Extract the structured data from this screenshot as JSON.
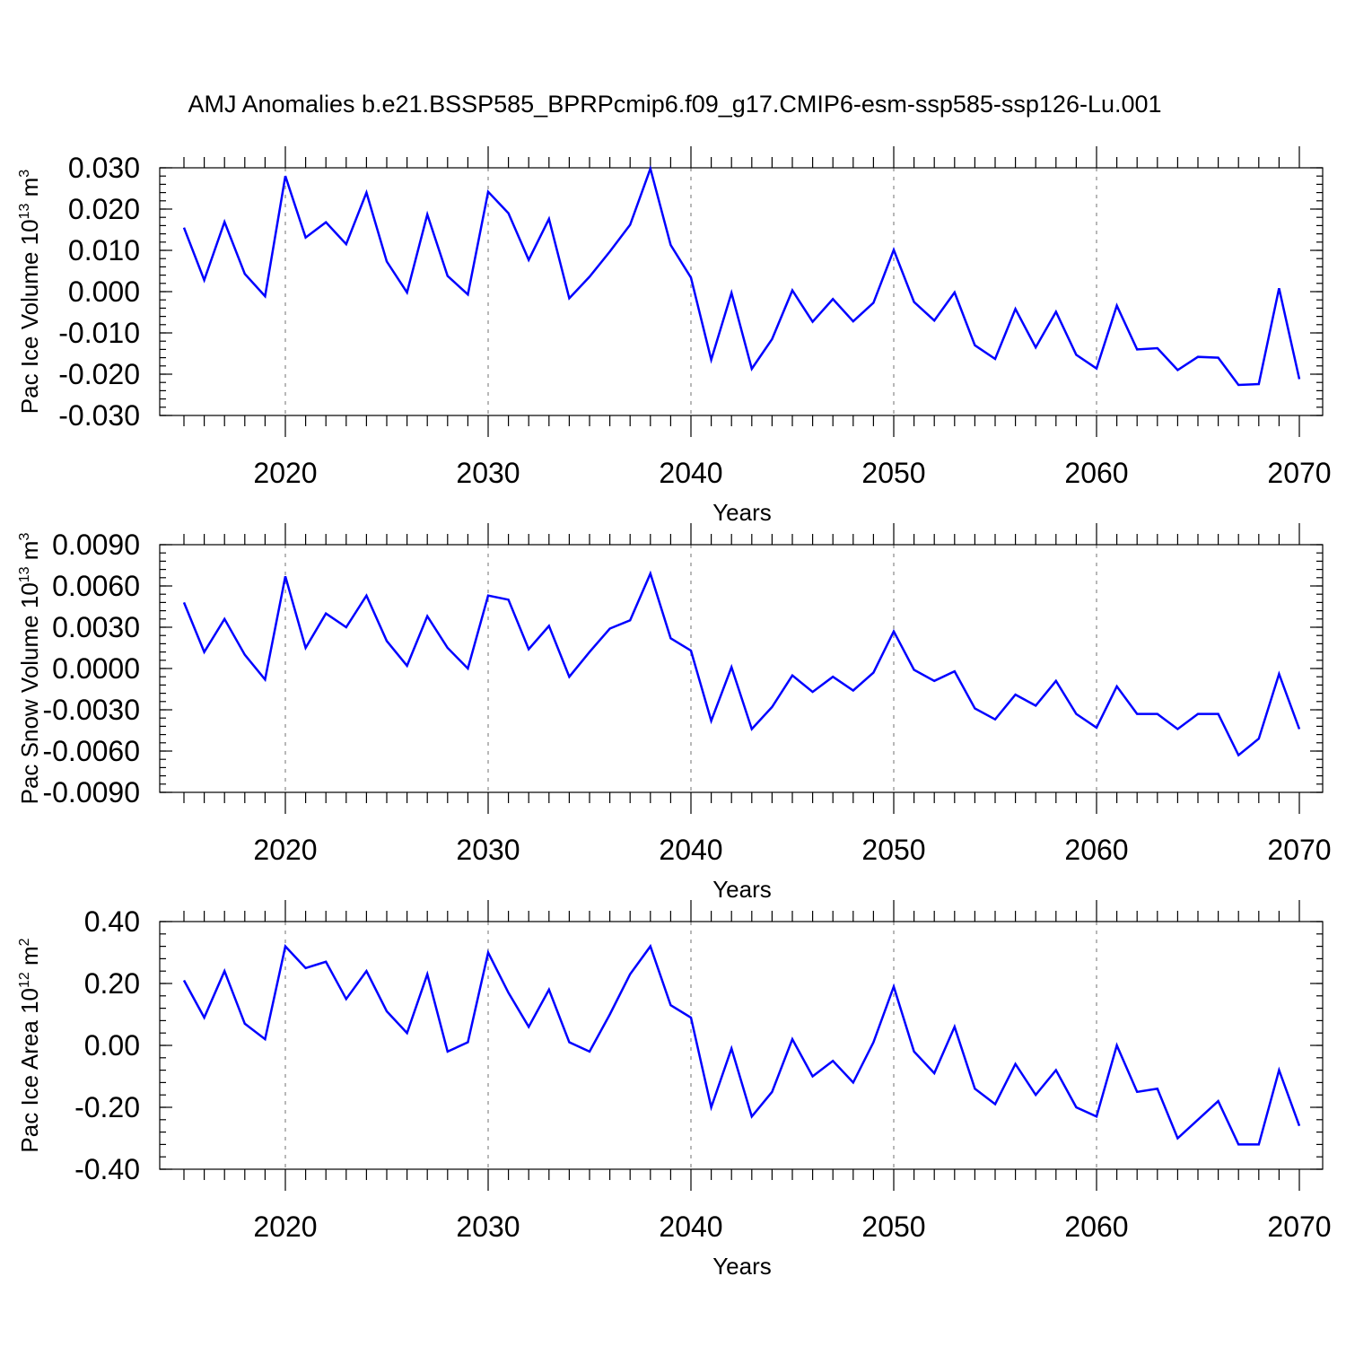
{
  "figure_title": "AMJ Anomalies b.e21.BSSP585_BPRPcmip6.f09_g17.CMIP6-esm-ssp585-ssp126-Lu.001",
  "colors": {
    "line": "#0000ff",
    "grid": "#888888",
    "axes": "#000000"
  },
  "chart_data": [
    {
      "type": "line",
      "ylabel": "Pac Ice Volume 10",
      "ylabel_exp": "13",
      "ylabel_unit": " m",
      "ylabel_unit_exp": "3",
      "xlabel": "Years",
      "xlim": [
        2015,
        2070
      ],
      "ylim": [
        -0.03,
        0.03
      ],
      "xticks": [
        2020,
        2030,
        2040,
        2050,
        2060,
        2070
      ],
      "xtick_labels": [
        "2020",
        "2030",
        "2040",
        "2050",
        "2060",
        "2070"
      ],
      "yticks": [
        0.03,
        0.02,
        0.01,
        0.0,
        -0.01,
        -0.02,
        -0.03
      ],
      "ytick_labels": [
        "0.030",
        "0.020",
        "0.010",
        "0.000",
        "-0.010",
        "-0.020",
        "-0.030"
      ],
      "yminor_step": 0.002,
      "xminor_step": 1,
      "vgrid": [
        2020,
        2030,
        2040,
        2050,
        2060
      ],
      "x": [
        2015,
        2016,
        2017,
        2018,
        2019,
        2020,
        2021,
        2022,
        2023,
        2024,
        2025,
        2026,
        2027,
        2028,
        2029,
        2030,
        2031,
        2032,
        2033,
        2034,
        2035,
        2036,
        2037,
        2038,
        2039,
        2040,
        2041,
        2042,
        2043,
        2044,
        2045,
        2046,
        2047,
        2048,
        2049,
        2050,
        2051,
        2052,
        2053,
        2054,
        2055,
        2056,
        2057,
        2058,
        2059,
        2060,
        2061,
        2062,
        2063,
        2064,
        2065,
        2066,
        2067,
        2068,
        2069,
        2070
      ],
      "values": [
        0.0155,
        0.0028,
        0.0169,
        0.0043,
        -0.0011,
        0.028,
        0.0131,
        0.0168,
        0.0115,
        0.024,
        0.0073,
        -0.0002,
        0.0187,
        0.0038,
        -0.0007,
        0.0242,
        0.019,
        0.0077,
        0.0176,
        -0.0016,
        0.0036,
        0.0097,
        0.0162,
        0.0298,
        0.0113,
        0.0034,
        -0.0165,
        -0.0003,
        -0.0187,
        -0.0115,
        0.0003,
        -0.0073,
        -0.0018,
        -0.0072,
        -0.0027,
        0.0101,
        -0.0025,
        -0.007,
        -0.0002,
        -0.013,
        -0.0163,
        -0.0042,
        -0.0135,
        -0.0049,
        -0.0153,
        -0.0186,
        -0.0034,
        -0.014,
        -0.0137,
        -0.019,
        -0.0158,
        -0.016,
        -0.0226,
        -0.0224,
        0.0008,
        -0.0212
      ]
    },
    {
      "type": "line",
      "ylabel": "Pac Snow Volume 10",
      "ylabel_exp": "13",
      "ylabel_unit": " m",
      "ylabel_unit_exp": "3",
      "xlabel": "Years",
      "xlim": [
        2015,
        2070
      ],
      "ylim": [
        -0.009,
        0.009
      ],
      "xticks": [
        2020,
        2030,
        2040,
        2050,
        2060,
        2070
      ],
      "xtick_labels": [
        "2020",
        "2030",
        "2040",
        "2050",
        "2060",
        "2070"
      ],
      "yticks": [
        0.009,
        0.006,
        0.003,
        0.0,
        -0.003,
        -0.006,
        -0.009
      ],
      "ytick_labels": [
        "0.0090",
        "0.0060",
        "0.0030",
        "0.0000",
        "-0.0030",
        "-0.0060",
        "-0.0090"
      ],
      "yminor_step": 0.0006,
      "xminor_step": 1,
      "vgrid": [
        2020,
        2030,
        2040,
        2050,
        2060
      ],
      "x": [
        2015,
        2016,
        2017,
        2018,
        2019,
        2020,
        2021,
        2022,
        2023,
        2024,
        2025,
        2026,
        2027,
        2028,
        2029,
        2030,
        2031,
        2032,
        2033,
        2034,
        2035,
        2036,
        2037,
        2038,
        2039,
        2040,
        2041,
        2042,
        2043,
        2044,
        2045,
        2046,
        2047,
        2048,
        2049,
        2050,
        2051,
        2052,
        2053,
        2054,
        2055,
        2056,
        2057,
        2058,
        2059,
        2060,
        2061,
        2062,
        2063,
        2064,
        2065,
        2066,
        2067,
        2068,
        2069,
        2070
      ],
      "values": [
        0.0048,
        0.0012,
        0.0036,
        0.001,
        -0.0008,
        0.0067,
        0.0015,
        0.004,
        0.003,
        0.0053,
        0.002,
        0.0002,
        0.0038,
        0.0015,
        0.0,
        0.0053,
        0.005,
        0.0014,
        0.0031,
        -0.0006,
        0.0012,
        0.0029,
        0.0035,
        0.0069,
        0.0022,
        0.0013,
        -0.0038,
        0.0001,
        -0.0044,
        -0.0028,
        -0.0005,
        -0.0017,
        -0.0006,
        -0.0016,
        -0.0003,
        0.0027,
        -0.0001,
        -0.0009,
        -0.0002,
        -0.0029,
        -0.0037,
        -0.0019,
        -0.0027,
        -0.0009,
        -0.0033,
        -0.0043,
        -0.0013,
        -0.0033,
        -0.0033,
        -0.0044,
        -0.0033,
        -0.0033,
        -0.0063,
        -0.0051,
        -0.0004,
        -0.0044
      ]
    },
    {
      "type": "line",
      "ylabel": "Pac Ice Area 10",
      "ylabel_exp": "12",
      "ylabel_unit": " m",
      "ylabel_unit_exp": "2",
      "xlabel": "Years",
      "xlim": [
        2015,
        2070
      ],
      "ylim": [
        -0.4,
        0.4
      ],
      "xticks": [
        2020,
        2030,
        2040,
        2050,
        2060,
        2070
      ],
      "xtick_labels": [
        "2020",
        "2030",
        "2040",
        "2050",
        "2060",
        "2070"
      ],
      "yticks": [
        0.4,
        0.2,
        0.0,
        -0.2,
        -0.4
      ],
      "ytick_labels": [
        "0.40",
        "0.20",
        "0.00",
        "-0.20",
        "-0.40"
      ],
      "yminor_step": 0.04,
      "xminor_step": 1,
      "vgrid": [
        2020,
        2030,
        2040,
        2050,
        2060
      ],
      "x": [
        2015,
        2016,
        2017,
        2018,
        2019,
        2020,
        2021,
        2022,
        2023,
        2024,
        2025,
        2026,
        2027,
        2028,
        2029,
        2030,
        2031,
        2032,
        2033,
        2034,
        2035,
        2036,
        2037,
        2038,
        2039,
        2040,
        2041,
        2042,
        2043,
        2044,
        2045,
        2046,
        2047,
        2048,
        2049,
        2050,
        2051,
        2052,
        2053,
        2054,
        2055,
        2056,
        2057,
        2058,
        2059,
        2060,
        2061,
        2062,
        2063,
        2064,
        2065,
        2066,
        2067,
        2068,
        2069,
        2070
      ],
      "values": [
        0.21,
        0.09,
        0.24,
        0.07,
        0.02,
        0.32,
        0.25,
        0.27,
        0.15,
        0.24,
        0.11,
        0.04,
        0.23,
        -0.02,
        0.01,
        0.3,
        0.17,
        0.06,
        0.18,
        0.01,
        -0.02,
        0.1,
        0.23,
        0.32,
        0.13,
        0.09,
        -0.2,
        -0.01,
        -0.23,
        -0.15,
        0.02,
        -0.1,
        -0.05,
        -0.12,
        0.01,
        0.19,
        -0.02,
        -0.09,
        0.06,
        -0.14,
        -0.19,
        -0.06,
        -0.16,
        -0.08,
        -0.2,
        -0.23,
        0.0,
        -0.15,
        -0.14,
        -0.3,
        -0.24,
        -0.18,
        -0.32,
        -0.32,
        -0.08,
        -0.26
      ]
    }
  ]
}
